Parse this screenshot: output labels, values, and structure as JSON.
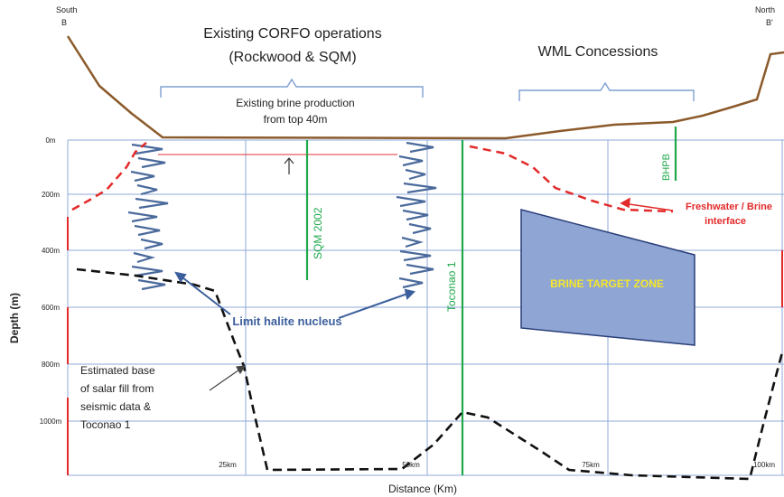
{
  "figure": {
    "corner_labels": {
      "left": {
        "line1": "South",
        "line2": "B"
      },
      "right": {
        "line1": "North",
        "line2": "B'"
      }
    },
    "brackets": {
      "corfo": {
        "line1": "Existing CORFO operations",
        "line2": "(Rockwood & SQM)"
      },
      "wml": {
        "label": "WML Concessions"
      }
    },
    "annotations": {
      "brine_production": {
        "line1": "Existing brine production",
        "line2": "from top 40m"
      },
      "freshwater": {
        "line1": "Freshwater / Brine",
        "line2": "interface"
      },
      "halite": "Limit halite nucleus",
      "target_zone": "BRINE TARGET ZONE",
      "salar_base": {
        "line1": "Estimated base",
        "line2": "of salar fill from",
        "line3": "seismic data &",
        "line4": "Toconao 1"
      }
    },
    "wells": {
      "sqm": "SQM 2002",
      "toconao": "Toconao 1",
      "bhpb": "BHPB"
    },
    "axes": {
      "ylabel": "Depth (m)",
      "xlabel": "Distance (Km)",
      "y_ticks": [
        "0m",
        "200m",
        "400m",
        "600m",
        "800m",
        "1000m"
      ],
      "x_ticks": [
        "25km",
        "50km",
        "75km",
        "100km"
      ]
    },
    "colors": {
      "surface": "#8B5A2B",
      "grid": "#8FA8D8",
      "halite": "#4A6A9C",
      "well": "#1EA84A",
      "freshwater": "#E32A2A",
      "salar_base": "#111111",
      "target_fill": "#8FA5D4",
      "target_text": "#F5E62A",
      "axis_red": "#E32A2A"
    }
  }
}
